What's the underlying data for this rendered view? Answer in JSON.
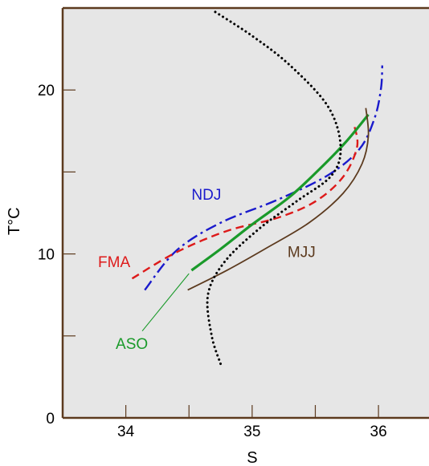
{
  "chart_data": {
    "type": "line",
    "xlabel": "S",
    "ylabel": "T°C",
    "xlim": [
      33.5,
      36.4
    ],
    "ylim": [
      0,
      25
    ],
    "x_ticks": [
      34,
      35,
      36
    ],
    "x_minor_ticks": [
      34.5,
      35.5
    ],
    "y_ticks": [
      0,
      10,
      20
    ],
    "y_minor_ticks": [
      5,
      15
    ],
    "grid": false,
    "colors": {
      "plot_background": "#e6e6e6",
      "frame": "#5c3a1e",
      "NDJ": "#1a1acc",
      "FMA": "#dd1a1a",
      "ASO": "#1a9a2a",
      "MJJ": "#5c3a1e",
      "background_profile": "#000000"
    },
    "series": [
      {
        "name": "NDJ",
        "style": "dash-dot",
        "points": [
          [
            34.15,
            7.8
          ],
          [
            34.4,
            10.2
          ],
          [
            34.75,
            11.9
          ],
          [
            35.2,
            13.3
          ],
          [
            35.6,
            14.8
          ],
          [
            35.85,
            16.4
          ],
          [
            35.97,
            18.3
          ],
          [
            36.02,
            20.1
          ],
          [
            36.03,
            21.5
          ]
        ]
      },
      {
        "name": "FMA",
        "style": "dashed",
        "points": [
          [
            34.05,
            8.5
          ],
          [
            34.4,
            10.1
          ],
          [
            34.8,
            11.4
          ],
          [
            35.2,
            12.2
          ],
          [
            35.5,
            13.2
          ],
          [
            35.72,
            14.7
          ],
          [
            35.83,
            16.5
          ],
          [
            35.81,
            17.8
          ]
        ]
      },
      {
        "name": "ASO",
        "style": "solid-thick",
        "points": [
          [
            34.52,
            9.0
          ],
          [
            34.75,
            10.3
          ],
          [
            35.0,
            11.8
          ],
          [
            35.3,
            13.5
          ],
          [
            35.55,
            15.3
          ],
          [
            35.75,
            16.9
          ],
          [
            35.92,
            18.5
          ]
        ]
      },
      {
        "name": "MJJ",
        "style": "solid",
        "points": [
          [
            34.49,
            7.8
          ],
          [
            34.8,
            9.0
          ],
          [
            35.1,
            10.3
          ],
          [
            35.45,
            11.9
          ],
          [
            35.72,
            13.7
          ],
          [
            35.87,
            15.5
          ],
          [
            35.92,
            17.2
          ],
          [
            35.9,
            18.9
          ]
        ]
      },
      {
        "style": "dotted",
        "points": [
          [
            34.75,
            3.3
          ],
          [
            34.68,
            5.0
          ],
          [
            34.65,
            7.5
          ],
          [
            34.78,
            9.5
          ],
          [
            35.05,
            11.5
          ],
          [
            35.35,
            13.2
          ],
          [
            35.63,
            14.8
          ],
          [
            35.7,
            16.6
          ],
          [
            35.6,
            19.0
          ],
          [
            35.3,
            21.5
          ],
          [
            35.0,
            23.3
          ],
          [
            34.7,
            24.8
          ]
        ]
      }
    ],
    "labels": [
      {
        "text": "NDJ",
        "series": "NDJ",
        "x": 34.52,
        "y": 13.3
      },
      {
        "text": "FMA",
        "series": "FMA",
        "x": 33.78,
        "y": 9.2
      },
      {
        "text": "MJJ",
        "series": "MJJ",
        "x": 35.28,
        "y": 9.8
      },
      {
        "text": "ASO",
        "series": "ASO",
        "x": 33.92,
        "y": 4.2
      }
    ],
    "annotation_lines": [
      {
        "series": "ASO",
        "from": [
          34.13,
          5.3
        ],
        "to": [
          34.5,
          8.8
        ]
      }
    ]
  }
}
